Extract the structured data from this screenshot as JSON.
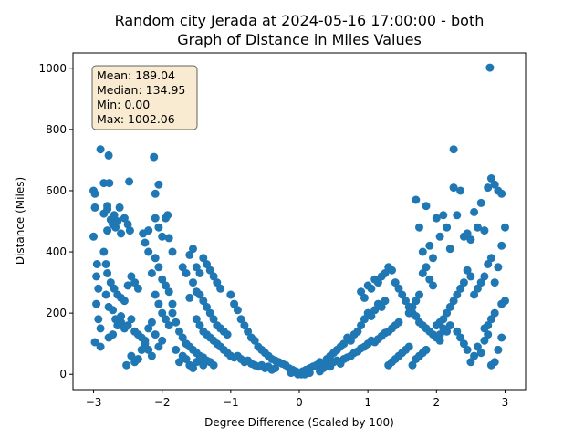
{
  "chart_data": {
    "type": "scatter",
    "title_line1": "Random city Jerada at 2024-05-16 17:00:00  - both",
    "title_line2": "Graph of Distance in Miles Values",
    "xlabel": "Degree Difference (Scaled by 100)",
    "ylabel": "Distance (Miles)",
    "xlim": [
      -3.3,
      3.3
    ],
    "ylim": [
      -50,
      1050
    ],
    "xticks": [
      -3,
      -2,
      -1,
      0,
      1,
      2,
      3
    ],
    "yticks": [
      0,
      200,
      400,
      600,
      800,
      1000
    ],
    "xtick_labels": [
      "−3",
      "−2",
      "−1",
      "0",
      "1",
      "2",
      "3"
    ],
    "ytick_labels": [
      "0",
      "200",
      "400",
      "600",
      "800",
      "1000"
    ],
    "marker_color": "#1f77b4",
    "stats": {
      "mean": "Mean: 189.04",
      "median": "Median: 134.95",
      "min": "Min: 0.00",
      "max": "Max: 1002.06"
    },
    "stats_box_fill": "#f5deb3",
    "points": [
      [
        -3.0,
        600
      ],
      [
        -2.98,
        590
      ],
      [
        -2.98,
        545
      ],
      [
        -3.0,
        450
      ],
      [
        -2.95,
        360
      ],
      [
        -2.96,
        320
      ],
      [
        -2.93,
        280
      ],
      [
        -2.96,
        230
      ],
      [
        -2.93,
        180
      ],
      [
        -2.9,
        150
      ],
      [
        -2.98,
        105
      ],
      [
        -2.9,
        90
      ],
      [
        -2.9,
        735
      ],
      [
        -2.85,
        625
      ],
      [
        -2.85,
        525
      ],
      [
        -2.8,
        540
      ],
      [
        -2.78,
        715
      ],
      [
        -2.77,
        625
      ],
      [
        -2.8,
        470
      ],
      [
        -2.8,
        550
      ],
      [
        -2.75,
        505
      ],
      [
        -2.72,
        490
      ],
      [
        -2.7,
        520
      ],
      [
        -2.68,
        480
      ],
      [
        -2.65,
        500
      ],
      [
        -2.6,
        460
      ],
      [
        -2.62,
        545
      ],
      [
        -2.55,
        510
      ],
      [
        -2.5,
        490
      ],
      [
        -2.48,
        630
      ],
      [
        -2.47,
        470
      ],
      [
        -2.85,
        400
      ],
      [
        -2.82,
        360
      ],
      [
        -2.8,
        330
      ],
      [
        -2.75,
        300
      ],
      [
        -2.7,
        280
      ],
      [
        -2.65,
        260
      ],
      [
        -2.6,
        250
      ],
      [
        -2.55,
        240
      ],
      [
        -2.5,
        290
      ],
      [
        -2.45,
        320
      ],
      [
        -2.4,
        300
      ],
      [
        -2.35,
        280
      ],
      [
        -2.82,
        260
      ],
      [
        -2.78,
        220
      ],
      [
        -2.72,
        210
      ],
      [
        -2.68,
        180
      ],
      [
        -2.65,
        160
      ],
      [
        -2.6,
        170
      ],
      [
        -2.55,
        150
      ],
      [
        -2.5,
        160
      ],
      [
        -2.45,
        180
      ],
      [
        -2.4,
        140
      ],
      [
        -2.35,
        130
      ],
      [
        -2.3,
        120
      ],
      [
        -2.25,
        100
      ],
      [
        -2.2,
        80
      ],
      [
        -2.15,
        60
      ],
      [
        -2.78,
        120
      ],
      [
        -2.72,
        130
      ],
      [
        -2.6,
        190
      ],
      [
        -2.52,
        30
      ],
      [
        -2.45,
        60
      ],
      [
        -2.4,
        40
      ],
      [
        -2.35,
        50
      ],
      [
        -2.3,
        80
      ],
      [
        -2.25,
        110
      ],
      [
        -2.2,
        150
      ],
      [
        -2.15,
        170
      ],
      [
        -2.1,
        130
      ],
      [
        -2.05,
        90
      ],
      [
        -2.0,
        110
      ],
      [
        -2.28,
        460
      ],
      [
        -2.2,
        470
      ],
      [
        -2.25,
        430
      ],
      [
        -2.2,
        400
      ],
      [
        -2.12,
        710
      ],
      [
        -2.1,
        590
      ],
      [
        -2.05,
        620
      ],
      [
        -2.1,
        510
      ],
      [
        -2.05,
        480
      ],
      [
        -2.0,
        450
      ],
      [
        -1.95,
        510
      ],
      [
        -1.92,
        520
      ],
      [
        -1.9,
        445
      ],
      [
        -1.85,
        400
      ],
      [
        -2.1,
        380
      ],
      [
        -2.05,
        350
      ],
      [
        -2.0,
        310
      ],
      [
        -1.95,
        290
      ],
      [
        -1.9,
        270
      ],
      [
        -1.85,
        230
      ],
      [
        -2.15,
        330
      ],
      [
        -2.1,
        260
      ],
      [
        -2.05,
        230
      ],
      [
        -2.0,
        200
      ],
      [
        -1.95,
        180
      ],
      [
        -1.9,
        160
      ],
      [
        -1.85,
        200
      ],
      [
        -1.8,
        170
      ],
      [
        -1.75,
        140
      ],
      [
        -1.7,
        120
      ],
      [
        -1.65,
        100
      ],
      [
        -1.6,
        90
      ],
      [
        -1.55,
        80
      ],
      [
        -1.5,
        70
      ],
      [
        -1.45,
        60
      ],
      [
        -1.4,
        55
      ],
      [
        -1.8,
        80
      ],
      [
        -1.75,
        40
      ],
      [
        -1.7,
        60
      ],
      [
        -1.65,
        50
      ],
      [
        -1.6,
        30
      ],
      [
        -1.55,
        20
      ],
      [
        -1.5,
        40
      ],
      [
        -1.45,
        50
      ],
      [
        -1.4,
        30
      ],
      [
        -1.35,
        45
      ],
      [
        -1.3,
        40
      ],
      [
        -1.25,
        30
      ],
      [
        -1.7,
        350
      ],
      [
        -1.65,
        330
      ],
      [
        -1.6,
        390
      ],
      [
        -1.55,
        410
      ],
      [
        -1.5,
        350
      ],
      [
        -1.45,
        330
      ],
      [
        -1.4,
        380
      ],
      [
        -1.35,
        360
      ],
      [
        -1.3,
        340
      ],
      [
        -1.25,
        320
      ],
      [
        -1.2,
        300
      ],
      [
        -1.15,
        280
      ],
      [
        -1.6,
        250
      ],
      [
        -1.55,
        300
      ],
      [
        -1.5,
        270
      ],
      [
        -1.45,
        260
      ],
      [
        -1.4,
        240
      ],
      [
        -1.35,
        220
      ],
      [
        -1.3,
        200
      ],
      [
        -1.25,
        180
      ],
      [
        -1.2,
        160
      ],
      [
        -1.15,
        150
      ],
      [
        -1.1,
        140
      ],
      [
        -1.05,
        130
      ],
      [
        -1.5,
        180
      ],
      [
        -1.45,
        160
      ],
      [
        -1.4,
        140
      ],
      [
        -1.35,
        130
      ],
      [
        -1.3,
        120
      ],
      [
        -1.25,
        110
      ],
      [
        -1.2,
        100
      ],
      [
        -1.15,
        90
      ],
      [
        -1.1,
        80
      ],
      [
        -1.05,
        70
      ],
      [
        -1.0,
        60
      ],
      [
        -0.95,
        55
      ],
      [
        -0.9,
        60
      ],
      [
        -0.85,
        50
      ],
      [
        -0.8,
        40
      ],
      [
        -0.75,
        45
      ],
      [
        -0.7,
        35
      ],
      [
        -0.65,
        30
      ],
      [
        -0.6,
        25
      ],
      [
        -0.55,
        30
      ],
      [
        -0.5,
        20
      ],
      [
        -0.45,
        25
      ],
      [
        -0.4,
        15
      ],
      [
        -0.35,
        20
      ],
      [
        -1.0,
        260
      ],
      [
        -0.95,
        230
      ],
      [
        -0.9,
        210
      ],
      [
        -0.85,
        180
      ],
      [
        -0.8,
        160
      ],
      [
        -0.75,
        140
      ],
      [
        -0.7,
        120
      ],
      [
        -0.65,
        110
      ],
      [
        -0.6,
        90
      ],
      [
        -0.55,
        80
      ],
      [
        -0.5,
        70
      ],
      [
        -0.45,
        60
      ],
      [
        -0.4,
        50
      ],
      [
        -0.35,
        45
      ],
      [
        -0.3,
        40
      ],
      [
        -0.25,
        35
      ],
      [
        -0.2,
        30
      ],
      [
        -0.15,
        20
      ],
      [
        -0.1,
        15
      ],
      [
        -0.05,
        10
      ],
      [
        0.0,
        5
      ],
      [
        0.03,
        0
      ],
      [
        -0.02,
        0
      ],
      [
        0.05,
        10
      ],
      [
        0.1,
        15
      ],
      [
        0.15,
        20
      ],
      [
        0.2,
        25
      ],
      [
        0.25,
        30
      ],
      [
        0.3,
        40
      ],
      [
        0.35,
        35
      ],
      [
        0.4,
        50
      ],
      [
        0.45,
        60
      ],
      [
        0.5,
        70
      ],
      [
        0.55,
        80
      ],
      [
        0.6,
        90
      ],
      [
        0.65,
        100
      ],
      [
        0.7,
        120
      ],
      [
        0.75,
        110
      ],
      [
        0.8,
        130
      ],
      [
        0.85,
        140
      ],
      [
        0.9,
        160
      ],
      [
        0.95,
        180
      ],
      [
        1.0,
        200
      ],
      [
        1.05,
        190
      ],
      [
        1.1,
        210
      ],
      [
        1.15,
        230
      ],
      [
        1.2,
        220
      ],
      [
        1.25,
        240
      ],
      [
        0.3,
        10
      ],
      [
        0.35,
        20
      ],
      [
        0.4,
        30
      ],
      [
        0.45,
        25
      ],
      [
        0.5,
        40
      ],
      [
        0.55,
        45
      ],
      [
        0.6,
        35
      ],
      [
        0.65,
        50
      ],
      [
        0.7,
        55
      ],
      [
        0.75,
        60
      ],
      [
        0.8,
        70
      ],
      [
        0.85,
        75
      ],
      [
        0.9,
        85
      ],
      [
        0.95,
        90
      ],
      [
        1.0,
        100
      ],
      [
        1.05,
        110
      ],
      [
        1.1,
        105
      ],
      [
        1.15,
        115
      ],
      [
        1.2,
        125
      ],
      [
        1.25,
        135
      ],
      [
        1.3,
        140
      ],
      [
        1.35,
        150
      ],
      [
        1.4,
        160
      ],
      [
        1.45,
        170
      ],
      [
        0.9,
        270
      ],
      [
        0.95,
        250
      ],
      [
        1.0,
        290
      ],
      [
        1.05,
        280
      ],
      [
        1.1,
        310
      ],
      [
        1.15,
        300
      ],
      [
        1.2,
        320
      ],
      [
        1.25,
        330
      ],
      [
        1.3,
        350
      ],
      [
        1.35,
        340
      ],
      [
        1.4,
        300
      ],
      [
        1.45,
        280
      ],
      [
        1.5,
        260
      ],
      [
        1.55,
        240
      ],
      [
        1.6,
        220
      ],
      [
        1.65,
        200
      ],
      [
        1.7,
        190
      ],
      [
        1.75,
        170
      ],
      [
        1.8,
        160
      ],
      [
        1.85,
        150
      ],
      [
        1.9,
        140
      ],
      [
        1.95,
        130
      ],
      [
        2.0,
        120
      ],
      [
        2.05,
        110
      ],
      [
        1.3,
        30
      ],
      [
        1.35,
        40
      ],
      [
        1.4,
        50
      ],
      [
        1.45,
        60
      ],
      [
        1.5,
        70
      ],
      [
        1.55,
        80
      ],
      [
        1.6,
        90
      ],
      [
        1.65,
        30
      ],
      [
        1.7,
        50
      ],
      [
        1.75,
        60
      ],
      [
        1.8,
        70
      ],
      [
        1.85,
        80
      ],
      [
        1.7,
        570
      ],
      [
        1.75,
        480
      ],
      [
        1.8,
        400
      ],
      [
        1.85,
        550
      ],
      [
        1.9,
        420
      ],
      [
        1.95,
        380
      ],
      [
        2.0,
        510
      ],
      [
        2.05,
        450
      ],
      [
        2.1,
        520
      ],
      [
        2.15,
        480
      ],
      [
        2.2,
        410
      ],
      [
        2.25,
        735
      ],
      [
        2.25,
        610
      ],
      [
        2.3,
        520
      ],
      [
        2.35,
        600
      ],
      [
        2.4,
        450
      ],
      [
        2.45,
        460
      ],
      [
        2.5,
        440
      ],
      [
        2.55,
        530
      ],
      [
        2.6,
        480
      ],
      [
        2.65,
        560
      ],
      [
        2.7,
        470
      ],
      [
        2.75,
        610
      ],
      [
        2.8,
        640
      ],
      [
        2.85,
        620
      ],
      [
        2.9,
        600
      ],
      [
        2.95,
        590
      ],
      [
        3.0,
        480
      ],
      [
        2.95,
        420
      ],
      [
        2.9,
        350
      ],
      [
        2.85,
        300
      ],
      [
        2.8,
        380
      ],
      [
        2.75,
        360
      ],
      [
        2.7,
        320
      ],
      [
        2.65,
        300
      ],
      [
        2.6,
        280
      ],
      [
        2.55,
        260
      ],
      [
        2.5,
        320
      ],
      [
        2.45,
        340
      ],
      [
        2.4,
        300
      ],
      [
        2.35,
        280
      ],
      [
        2.3,
        260
      ],
      [
        2.25,
        240
      ],
      [
        2.2,
        220
      ],
      [
        2.15,
        200
      ],
      [
        2.1,
        180
      ],
      [
        2.05,
        170
      ],
      [
        2.0,
        160
      ],
      [
        1.95,
        290
      ],
      [
        1.9,
        310
      ],
      [
        1.85,
        350
      ],
      [
        1.8,
        330
      ],
      [
        1.75,
        260
      ],
      [
        1.7,
        240
      ],
      [
        1.65,
        220
      ],
      [
        1.6,
        200
      ],
      [
        2.3,
        140
      ],
      [
        2.35,
        120
      ],
      [
        2.4,
        100
      ],
      [
        2.45,
        80
      ],
      [
        2.5,
        40
      ],
      [
        2.55,
        60
      ],
      [
        2.6,
        90
      ],
      [
        2.65,
        70
      ],
      [
        2.7,
        110
      ],
      [
        2.75,
        130
      ],
      [
        2.8,
        30
      ],
      [
        2.85,
        40
      ],
      [
        2.9,
        80
      ],
      [
        2.95,
        120
      ],
      [
        3.0,
        240
      ],
      [
        2.95,
        230
      ],
      [
        2.85,
        200
      ],
      [
        2.8,
        180
      ],
      [
        2.75,
        160
      ],
      [
        2.7,
        150
      ],
      [
        2.2,
        160
      ],
      [
        2.15,
        140
      ],
      [
        2.1,
        150
      ],
      [
        2.05,
        130
      ],
      [
        2.78,
        1002
      ],
      [
        0.15,
        5
      ],
      [
        -0.12,
        5
      ],
      [
        0.08,
        0
      ]
    ]
  }
}
